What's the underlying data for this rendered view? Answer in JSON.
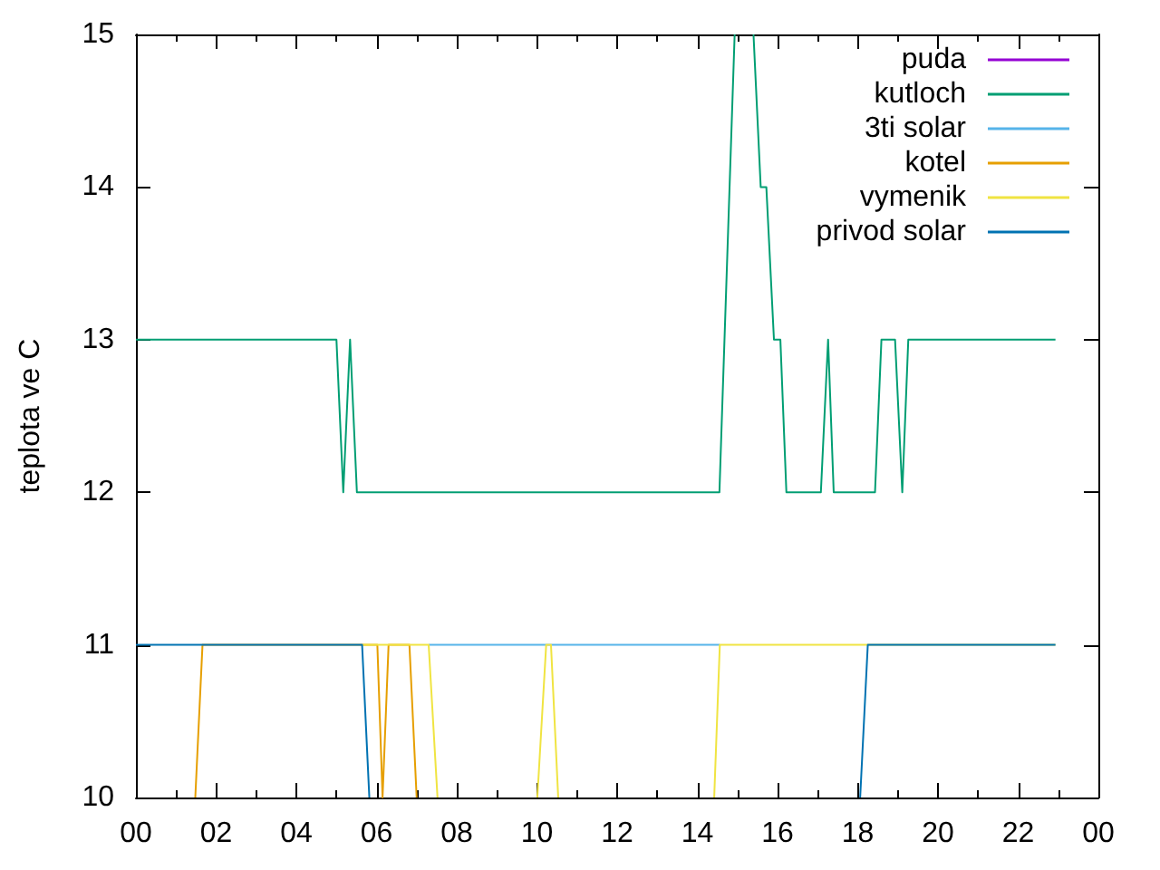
{
  "chart_data": {
    "type": "line",
    "ylabel": "teplota ve C",
    "xlim": [
      0,
      24
    ],
    "xticks": [
      {
        "value": 0,
        "label": "00"
      },
      {
        "value": 1,
        "label": null
      },
      {
        "value": 2,
        "label": "02"
      },
      {
        "value": 3,
        "label": null
      },
      {
        "value": 4,
        "label": "04"
      },
      {
        "value": 5,
        "label": null
      },
      {
        "value": 6,
        "label": "06"
      },
      {
        "value": 7,
        "label": null
      },
      {
        "value": 8,
        "label": "08"
      },
      {
        "value": 9,
        "label": null
      },
      {
        "value": 10,
        "label": "10"
      },
      {
        "value": 11,
        "label": null
      },
      {
        "value": 12,
        "label": "12"
      },
      {
        "value": 13,
        "label": null
      },
      {
        "value": 14,
        "label": "14"
      },
      {
        "value": 15,
        "label": null
      },
      {
        "value": 16,
        "label": "16"
      },
      {
        "value": 17,
        "label": null
      },
      {
        "value": 18,
        "label": "18"
      },
      {
        "value": 19,
        "label": null
      },
      {
        "value": 20,
        "label": "20"
      },
      {
        "value": 21,
        "label": null
      },
      {
        "value": 22,
        "label": "22"
      },
      {
        "value": 23,
        "label": null
      },
      {
        "value": 24,
        "label": "00"
      }
    ],
    "ylim": [
      10,
      15
    ],
    "yticks": [
      10,
      11,
      12,
      13,
      14,
      15
    ],
    "legend": "top right",
    "grid": false,
    "series": [
      {
        "name": "puda",
        "color": "#9400d3"
      },
      {
        "name": "kutloch",
        "color": "#009e73",
        "x": [
          0,
          5.0,
          5.17,
          5.34,
          5.51,
          14.55,
          14.93,
          15.15,
          15.4,
          15.58,
          15.72,
          15.91,
          16.07,
          16.22,
          17.08,
          17.26,
          17.4,
          18.43,
          18.59,
          18.93,
          19.11,
          19.26,
          22.93
        ],
        "values": [
          13,
          13,
          12,
          13,
          12,
          12,
          15,
          null,
          15,
          14,
          14,
          13,
          13,
          12,
          12,
          13,
          12,
          12,
          13,
          13,
          12,
          13,
          13
        ]
      },
      {
        "name": "3ti solar",
        "color": "#56b4e9",
        "x": [
          7.3,
          14.56
        ],
        "values": [
          11,
          11
        ]
      },
      {
        "name": "kotel",
        "color": "#e69f00",
        "x": [
          1.48,
          1.66,
          6.02,
          6.15,
          6.3,
          6.82,
          7.0
        ],
        "values": [
          10,
          11,
          11,
          10,
          11,
          11,
          10
        ]
      },
      {
        "name": "vymenik",
        "color": "#f0e442",
        "x": [
          5.64,
          7.3,
          7.52,
          8.8,
          10.01,
          10.23,
          10.35,
          10.53,
          12.5,
          14.42,
          14.56,
          22.93
        ],
        "values": [
          11,
          11,
          10,
          null,
          10,
          11,
          11,
          10,
          null,
          10,
          11,
          11
        ]
      },
      {
        "name": "privod solar",
        "color": "#0072b2",
        "x": [
          0,
          5.64,
          5.82,
          12,
          18.06,
          18.25,
          22.93
        ],
        "values": [
          11,
          11,
          10,
          null,
          10,
          11,
          11
        ]
      }
    ]
  }
}
